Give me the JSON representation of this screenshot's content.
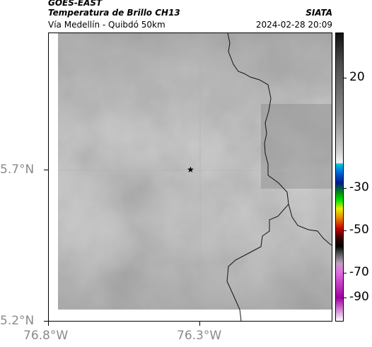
{
  "header": {
    "superscript": "GOES-EAST",
    "title": "Temperatura de Brillo CH13",
    "subtitle": "Vía Medellín - Quibdó 50km",
    "org": "SIATA",
    "datetime": "2024-02-28 20:09"
  },
  "map": {
    "marker_icon": "star-icon",
    "lat_labels": [
      "5.7°N",
      "5.2°N"
    ],
    "lon_labels": [
      "76.8°W",
      "76.3°W"
    ]
  },
  "colorbar": {
    "ticks": [
      "20",
      "-30",
      "-50",
      "-70",
      "-90"
    ]
  }
}
